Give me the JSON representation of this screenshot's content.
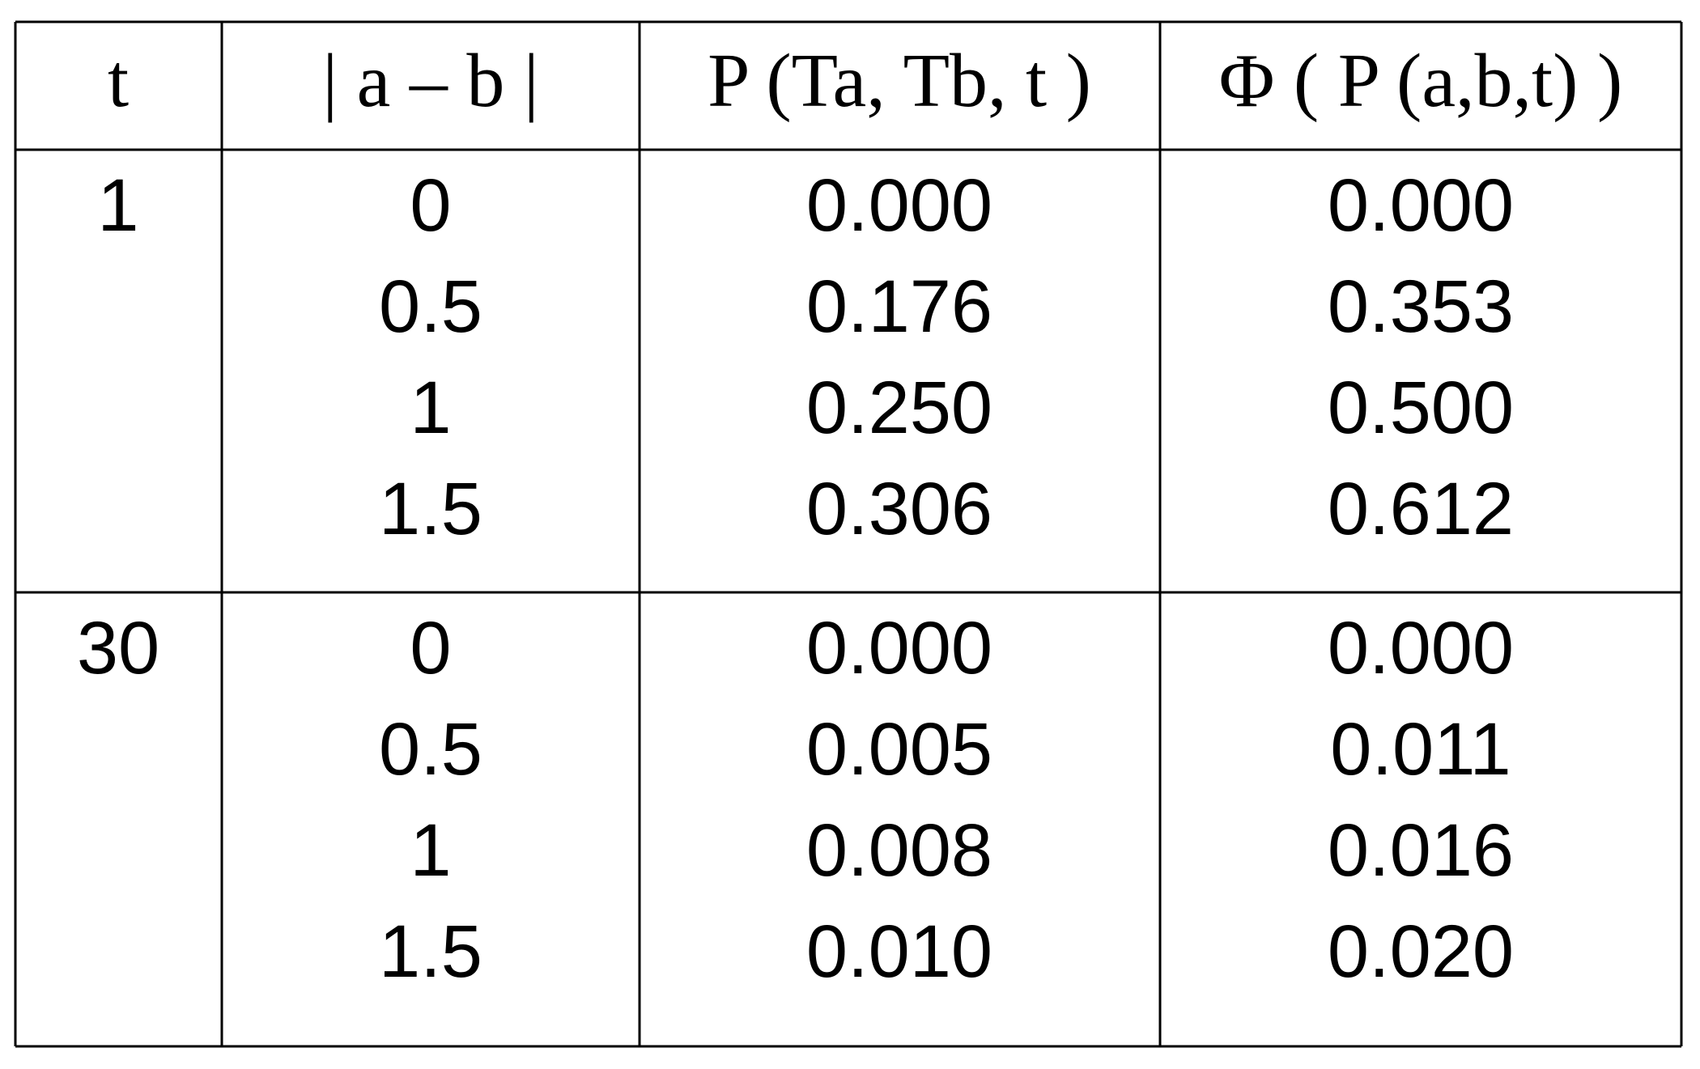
{
  "table": {
    "header": [
      "t",
      "| a – b |",
      "P (Ta, Tb, t )",
      "Φ ( P (a,b,t) )"
    ],
    "groups": [
      {
        "t": "1",
        "rows": [
          [
            "0",
            "0.000",
            "0.000"
          ],
          [
            "0.5",
            "0.176",
            "0.353"
          ],
          [
            "1",
            "0.250",
            "0.500"
          ],
          [
            "1.5",
            "0.306",
            "0.612"
          ]
        ]
      },
      {
        "t": "30",
        "rows": [
          [
            "0",
            "0.000",
            "0.000"
          ],
          [
            "0.5",
            "0.005",
            "0.011"
          ],
          [
            "1",
            "0.008",
            "0.016"
          ],
          [
            "1.5",
            "0.010",
            "0.020"
          ]
        ]
      }
    ]
  }
}
